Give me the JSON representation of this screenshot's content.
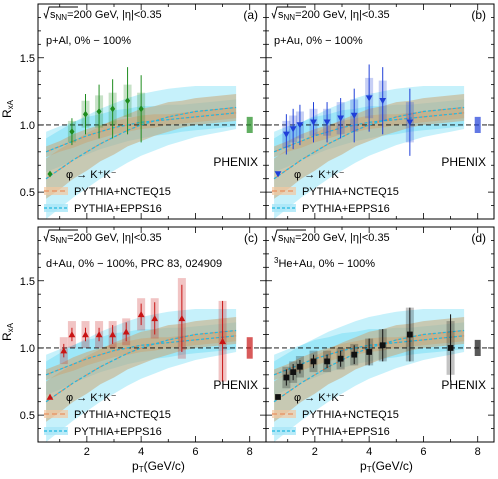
{
  "figure": {
    "ylabel": "R_xA",
    "xlabel": "p_T (GeV/c)",
    "x_ticks": [
      "2",
      "4",
      "6",
      "8"
    ],
    "y_ticks": [
      "0.5",
      "1.0",
      "1.5"
    ],
    "shared_x_range": [
      0.2,
      8.6
    ],
    "shared_y_range": [
      0.3,
      1.9
    ]
  },
  "chart_data": [
    {
      "type": "scatter",
      "panel": "(a)",
      "energy_text": "=200 GeV, |η|<0.35",
      "system_text": "p+Al, 0% − 100%",
      "experiment": "PHENIX",
      "color": "#1e8c1e",
      "marker": "diamond",
      "legend": [
        "φ → K⁺K⁻",
        "PYTHIA+NCTEQ15",
        "PYTHIA+EPPS16"
      ],
      "x": [
        1.45,
        1.95,
        2.45,
        2.95,
        3.5,
        4.0
      ],
      "y": [
        0.95,
        1.08,
        1.1,
        1.12,
        1.18,
        1.12
      ],
      "stat_err": [
        0.1,
        0.15,
        0.2,
        0.22,
        0.25,
        0.25
      ],
      "sys_err": [
        0.08,
        0.1,
        0.12,
        0.12,
        0.12,
        0.12
      ],
      "global_sys": 0.06
    },
    {
      "type": "scatter",
      "panel": "(b)",
      "energy_text": "=200 GeV, |η|<0.35",
      "system_text": "p+Au, 0% − 100%",
      "experiment": "PHENIX",
      "color": "#1f3fd8",
      "marker": "triangle-down",
      "legend": [
        "φ → K⁺K⁻",
        "PYTHIA+NCTEQ15",
        "PYTHIA+EPPS16"
      ],
      "x": [
        0.95,
        1.2,
        1.45,
        1.95,
        2.45,
        2.95,
        3.45,
        4.0,
        4.5,
        5.5
      ],
      "y": [
        0.93,
        0.97,
        1.0,
        1.02,
        1.02,
        1.05,
        1.07,
        1.2,
        1.18,
        1.02
      ],
      "stat_err": [
        0.15,
        0.15,
        0.15,
        0.15,
        0.15,
        0.15,
        0.2,
        0.25,
        0.25,
        0.25
      ],
      "sys_err": [
        0.1,
        0.1,
        0.1,
        0.1,
        0.1,
        0.12,
        0.12,
        0.15,
        0.15,
        0.15
      ],
      "global_sys": 0.06
    },
    {
      "type": "scatter",
      "panel": "(c)",
      "energy_text": "=200 GeV, |η|<0.35",
      "system_text": "d+Au, 0% − 100%, PRC 83, 024909",
      "experiment": "PHENIX",
      "color": "#c81414",
      "marker": "triangle-up",
      "legend": [
        "φ → K⁺K⁻",
        "PYTHIA+NCTEQ15",
        "PYTHIA+EPPS16"
      ],
      "x": [
        1.15,
        1.45,
        1.95,
        2.45,
        2.95,
        3.45,
        4.0,
        4.5,
        5.5,
        7.0
      ],
      "y": [
        0.98,
        1.1,
        1.1,
        1.1,
        1.1,
        1.12,
        1.25,
        1.22,
        1.22,
        1.05
      ],
      "stat_err": [
        0.05,
        0.05,
        0.05,
        0.05,
        0.07,
        0.07,
        0.08,
        0.12,
        0.25,
        0.3
      ],
      "sys_err": [
        0.1,
        0.1,
        0.1,
        0.1,
        0.1,
        0.1,
        0.12,
        0.15,
        0.3,
        0.3
      ],
      "global_sys": 0.08
    },
    {
      "type": "scatter",
      "panel": "(d)",
      "energy_text": "=200 GeV, |η|<0.35",
      "system_text": "³He+Au, 0% − 100%",
      "experiment": "PHENIX",
      "color": "#111111",
      "marker": "square",
      "legend": [
        "φ → K⁺K⁻",
        "PYTHIA+NCTEQ15",
        "PYTHIA+EPPS16"
      ],
      "x": [
        0.95,
        1.2,
        1.45,
        1.95,
        2.45,
        2.95,
        3.45,
        4.0,
        4.5,
        5.5,
        7.0
      ],
      "y": [
        0.78,
        0.82,
        0.86,
        0.9,
        0.9,
        0.92,
        0.95,
        0.97,
        1.02,
        1.1,
        1.0
      ],
      "stat_err": [
        0.06,
        0.06,
        0.05,
        0.05,
        0.05,
        0.06,
        0.07,
        0.1,
        0.12,
        0.2,
        0.25
      ],
      "sys_err": [
        0.08,
        0.08,
        0.08,
        0.08,
        0.08,
        0.08,
        0.08,
        0.1,
        0.12,
        0.2,
        0.2
      ],
      "global_sys": 0.06
    }
  ],
  "models": {
    "x": [
      0.5,
      1.0,
      1.5,
      2.0,
      2.5,
      3.0,
      3.5,
      4.0,
      4.5,
      5.0,
      5.5,
      6.0,
      6.5,
      7.0,
      7.5
    ],
    "ncteq15": {
      "color": "#f4a460",
      "a_c": [
        0.8,
        0.84,
        0.88,
        0.92,
        0.95,
        0.98,
        1.0,
        1.02,
        1.03,
        1.04,
        1.05,
        1.06,
        1.07,
        1.08,
        1.09
      ],
      "a_hw": [
        0.04,
        0.04,
        0.05,
        0.05,
        0.05,
        0.05,
        0.05,
        0.05,
        0.05,
        0.04,
        0.04,
        0.04,
        0.04,
        0.04,
        0.04
      ],
      "b_c": [
        0.6,
        0.67,
        0.74,
        0.8,
        0.86,
        0.91,
        0.96,
        1.0,
        1.03,
        1.06,
        1.08,
        1.1,
        1.11,
        1.12,
        1.13
      ],
      "b_hw": [
        0.15,
        0.15,
        0.14,
        0.14,
        0.13,
        0.13,
        0.12,
        0.12,
        0.11,
        0.11,
        0.1,
        0.1,
        0.1,
        0.1,
        0.1
      ]
    },
    "epps16": {
      "color": "#33ccf0",
      "a_c": [
        0.8,
        0.84,
        0.88,
        0.92,
        0.95,
        0.98,
        1.0,
        1.02,
        1.03,
        1.04,
        1.05,
        1.06,
        1.07,
        1.08,
        1.09
      ],
      "a_hw": [
        0.15,
        0.15,
        0.14,
        0.14,
        0.13,
        0.13,
        0.12,
        0.12,
        0.11,
        0.11,
        0.1,
        0.1,
        0.1,
        0.1,
        0.1
      ],
      "b_c": [
        0.6,
        0.67,
        0.74,
        0.8,
        0.86,
        0.91,
        0.96,
        1.0,
        1.03,
        1.06,
        1.08,
        1.1,
        1.11,
        1.12,
        1.13
      ],
      "b_hw": [
        0.3,
        0.29,
        0.28,
        0.27,
        0.26,
        0.25,
        0.24,
        0.23,
        0.22,
        0.21,
        0.2,
        0.19,
        0.18,
        0.17,
        0.16
      ]
    }
  }
}
